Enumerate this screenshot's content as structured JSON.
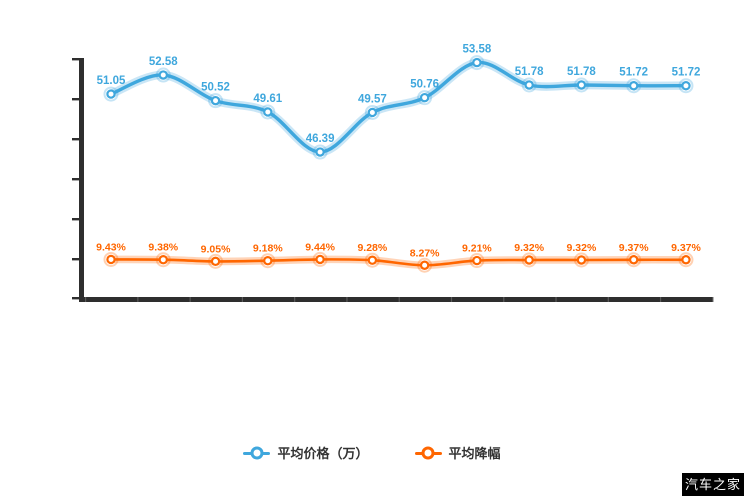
{
  "chart_data": {
    "type": "line",
    "points_per_series": 12,
    "x_axis": {
      "labels_visible": false,
      "tick_segments": 12
    },
    "y_axis": {
      "labels_visible": false,
      "tick_count": 7
    },
    "legend_position": "bottom-center",
    "grid": false,
    "series": [
      {
        "name": "平均价格（万）",
        "color": "#3fa7dd",
        "values": [
          51.05,
          52.58,
          50.52,
          49.61,
          46.39,
          49.57,
          50.76,
          53.58,
          51.78,
          51.78,
          51.72,
          51.72
        ],
        "labels": [
          "51.05",
          "52.58",
          "50.52",
          "49.61",
          "46.39",
          "49.57",
          "50.76",
          "53.58",
          "51.78",
          "51.78",
          "51.72",
          "51.72"
        ]
      },
      {
        "name": "平均降幅",
        "color": "#ff6600",
        "values": [
          9.43,
          9.38,
          9.05,
          9.18,
          9.44,
          9.28,
          8.27,
          9.21,
          9.32,
          9.32,
          9.37,
          9.37
        ],
        "labels": [
          "9.43%",
          "9.38%",
          "9.05%",
          "9.18%",
          "9.44%",
          "9.28%",
          "8.27%",
          "9.21%",
          "9.32%",
          "9.32%",
          "9.37%",
          "9.37%"
        ]
      }
    ]
  },
  "legend": {
    "items": [
      {
        "label": "平均价格（万）",
        "color": "#3fa7dd"
      },
      {
        "label": "平均降幅",
        "color": "#ff6600"
      }
    ]
  },
  "watermark": {
    "text": "汽车之家"
  },
  "colors": {
    "axis": "#2e2e2e",
    "legend_text": "#333333",
    "background": "#ffffff"
  }
}
